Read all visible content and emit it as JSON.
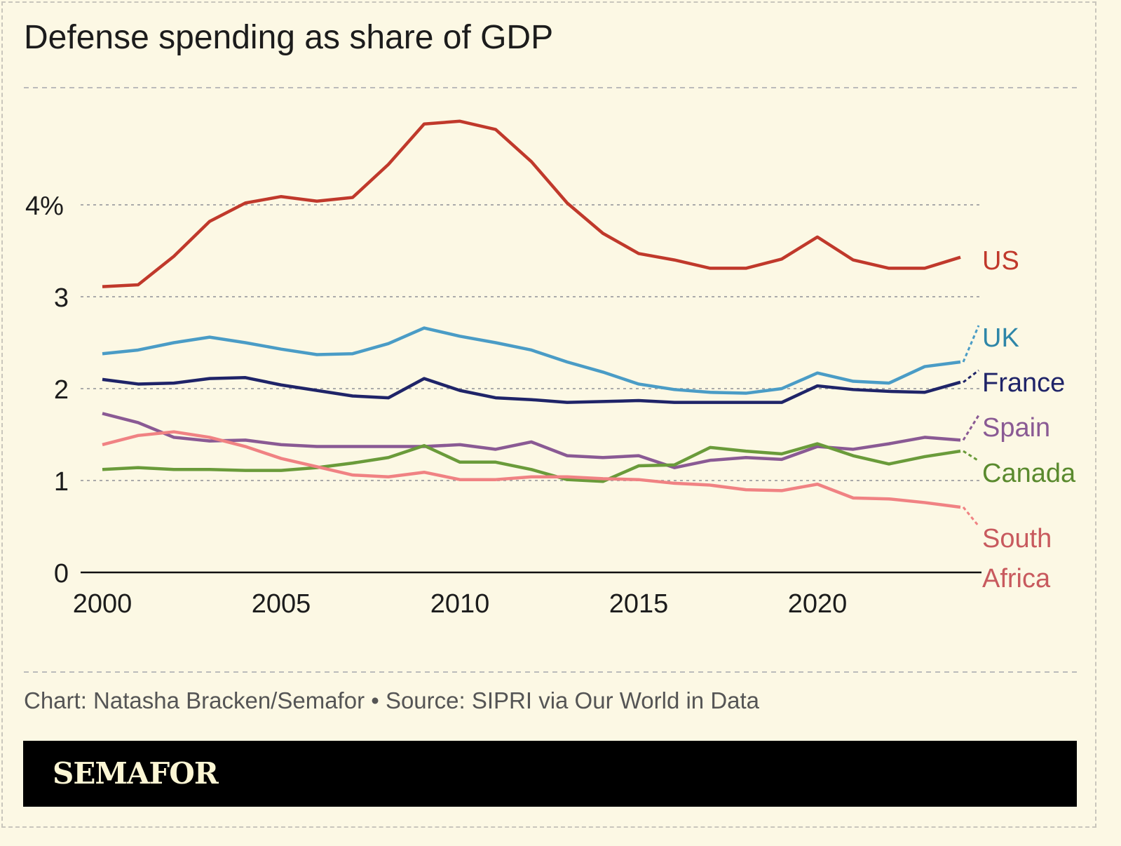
{
  "chart_data": {
    "type": "line",
    "title": "Defense spending as share of GDP",
    "x": [
      2000,
      2001,
      2002,
      2003,
      2004,
      2005,
      2006,
      2007,
      2008,
      2009,
      2010,
      2011,
      2012,
      2013,
      2014,
      2015,
      2016,
      2017,
      2018,
      2019,
      2020,
      2021,
      2022,
      2023,
      2024
    ],
    "x_ticks": [
      "2000",
      "2005",
      "2010",
      "2015",
      "2020"
    ],
    "y_ticks": [
      "0",
      "1",
      "2",
      "3",
      "4%"
    ],
    "ylim": [
      0,
      5
    ],
    "grid": "horizontal dashed",
    "legend": "direct labels at right",
    "series": [
      {
        "name": "US",
        "color": "#c0392b",
        "label_color": "#c0392b",
        "values": [
          3.11,
          3.13,
          3.44,
          3.82,
          4.02,
          4.09,
          4.04,
          4.08,
          4.44,
          4.88,
          4.91,
          4.82,
          4.47,
          4.02,
          3.69,
          3.47,
          3.4,
          3.31,
          3.31,
          3.41,
          3.65,
          3.4,
          3.31,
          3.31,
          3.43
        ]
      },
      {
        "name": "UK",
        "color": "#4a9cc6",
        "label_color": "#2e86a8",
        "values": [
          2.38,
          2.42,
          2.5,
          2.56,
          2.5,
          2.43,
          2.37,
          2.38,
          2.49,
          2.66,
          2.57,
          2.5,
          2.42,
          2.29,
          2.18,
          2.05,
          1.99,
          1.96,
          1.95,
          2.0,
          2.17,
          2.08,
          2.06,
          2.24,
          2.29
        ]
      },
      {
        "name": "France",
        "color": "#1f2468",
        "label_color": "#1f2468",
        "values": [
          2.1,
          2.05,
          2.06,
          2.11,
          2.12,
          2.04,
          1.98,
          1.92,
          1.9,
          2.11,
          1.98,
          1.9,
          1.88,
          1.85,
          1.86,
          1.87,
          1.85,
          1.85,
          1.85,
          1.85,
          2.03,
          1.99,
          1.97,
          1.96,
          2.07
        ]
      },
      {
        "name": "Spain",
        "color": "#8a5a94",
        "label_color": "#8a5a94",
        "values": [
          1.73,
          1.63,
          1.47,
          1.43,
          1.44,
          1.39,
          1.37,
          1.37,
          1.37,
          1.37,
          1.39,
          1.34,
          1.42,
          1.27,
          1.25,
          1.27,
          1.14,
          1.22,
          1.25,
          1.23,
          1.37,
          1.34,
          1.4,
          1.47,
          1.44
        ]
      },
      {
        "name": "Canada",
        "color": "#6a9b3a",
        "label_color": "#5a8a2e",
        "values": [
          1.12,
          1.14,
          1.12,
          1.12,
          1.11,
          1.11,
          1.14,
          1.19,
          1.25,
          1.38,
          1.2,
          1.2,
          1.12,
          1.01,
          0.99,
          1.16,
          1.17,
          1.36,
          1.32,
          1.29,
          1.4,
          1.27,
          1.18,
          1.26,
          1.32
        ]
      },
      {
        "name": "South Africa",
        "color": "#f08283",
        "label_color": "#c85a5e",
        "values": [
          1.39,
          1.49,
          1.53,
          1.47,
          1.37,
          1.24,
          1.15,
          1.06,
          1.04,
          1.09,
          1.01,
          1.01,
          1.04,
          1.04,
          1.02,
          1.01,
          0.97,
          0.95,
          0.9,
          0.89,
          0.96,
          0.81,
          0.8,
          0.76,
          0.71
        ]
      }
    ]
  },
  "footer": {
    "credit": "Chart: Natasha Bracken/Semafor • Source: SIPRI via Our World in Data",
    "logo": "SEMAFOR"
  }
}
